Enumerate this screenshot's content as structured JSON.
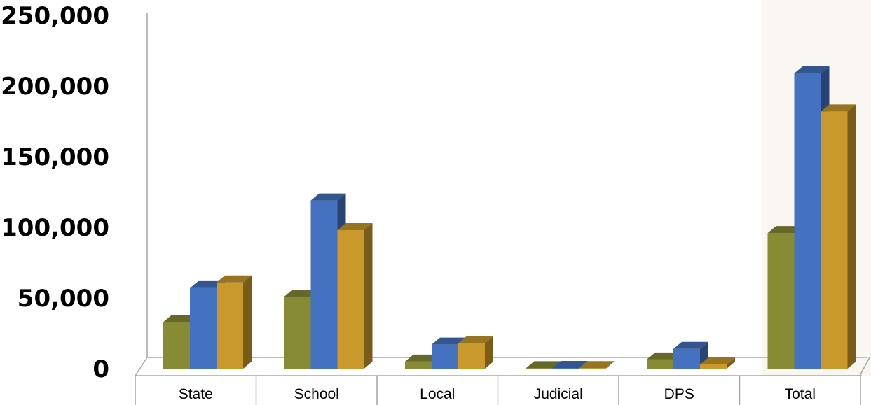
{
  "colors": {
    "series_1": "#868b34",
    "series_2": "#4472c0",
    "series_3": "#c99a2b",
    "axis": "#a6a6a6",
    "highlight_band": "#faf7f2"
  },
  "chart_data": {
    "type": "bar",
    "style": "3d-clustered-column",
    "categories": [
      "State",
      "School",
      "Local",
      "Judicial",
      "DPS",
      "Total"
    ],
    "series": [
      {
        "values": [
          33000,
          51000,
          5000,
          300,
          6500,
          96000
        ]
      },
      {
        "values": [
          57000,
          119000,
          17000,
          500,
          14000,
          209000
        ]
      },
      {
        "values": [
          61000,
          98000,
          18000,
          400,
          3000,
          182000
        ]
      }
    ],
    "y_ticks": [
      "0",
      "50,000",
      "100,000",
      "150,000",
      "200,000",
      "250,000"
    ],
    "ylim": [
      0,
      250000
    ],
    "grid": false,
    "legend": "none",
    "highlighted_category": "Total"
  }
}
